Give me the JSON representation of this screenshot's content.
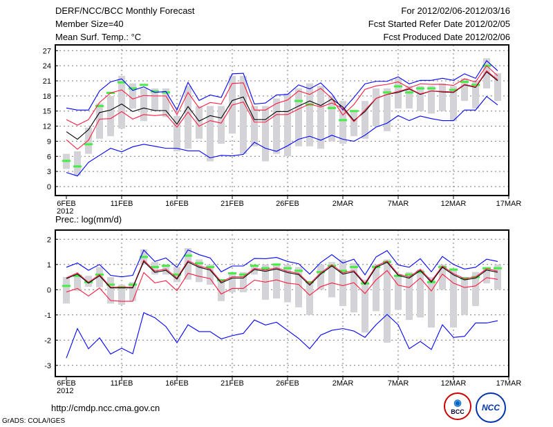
{
  "header": {
    "title": "DERF/NCC/BCC Monthly Forecast",
    "member_size": "Member Size=40",
    "variable": "Mean Surf. Temp.: °C",
    "period": "For 2012/02/06-2012/03/16",
    "started": "Fcst Started Refer Date 2012/02/05",
    "produced": "Fcst Produced Date 2012/02/06"
  },
  "footer": {
    "url": "http://cmdp.ncc.cma.gov.cn",
    "credit": "GrADS: COLA/IGES",
    "logo_bcc": "BCC",
    "logo_ncc": "NCC"
  },
  "colors": {
    "max_min": "#0000ff",
    "mean": "#000000",
    "spread": "#ff1a40",
    "range_bar": "#d3d3d8",
    "observed": "#44ee44"
  },
  "chart_data": [
    {
      "type": "line",
      "title": "Mean Surf. Temp.: °C",
      "xlabel": "",
      "ylabel": "",
      "x_ticks": [
        "6FEB",
        "11FEB",
        "16FEB",
        "21FEB",
        "26FEB",
        "2MAR",
        "7MAR",
        "12MAR",
        "17MAR"
      ],
      "x_year": "2012",
      "y_ticks": [
        0,
        3,
        6,
        9,
        12,
        15,
        18,
        21,
        24,
        27
      ],
      "ylim": [
        -1,
        28
      ],
      "grid": true,
      "days": 40,
      "series": [
        {
          "name": "max",
          "color": "#0000ff",
          "values": [
            15.6,
            15.2,
            15.2,
            19.0,
            20.8,
            21.4,
            19.1,
            19.8,
            18.7,
            18.9,
            15.2,
            20.7,
            17.1,
            18.2,
            17.7,
            22.4,
            22.5,
            16.4,
            16.6,
            18.2,
            18.3,
            20.2,
            19.4,
            20.6,
            18.4,
            15.2,
            17.7,
            20.4,
            20.9,
            20.9,
            21.8,
            20.4,
            21.1,
            21.1,
            21.5,
            21.1,
            22.4,
            21.5,
            25.0,
            23.0
          ]
        },
        {
          "name": "upper",
          "color": "#ff1a40",
          "values": [
            13.3,
            12.2,
            13.3,
            16.7,
            18.6,
            19.2,
            17.4,
            18.1,
            18.0,
            18.0,
            14.3,
            18.7,
            15.6,
            16.7,
            16.4,
            20.5,
            20.6,
            15.2,
            15.2,
            16.5,
            17.2,
            19.0,
            18.3,
            19.5,
            17.5,
            14.2,
            16.3,
            19.3,
            20.0,
            20.3,
            20.8,
            19.6,
            20.4,
            20.3,
            20.3,
            20.1,
            21.4,
            20.8,
            24.0,
            22.0
          ]
        },
        {
          "name": "mean",
          "color": "#000000",
          "values": [
            10.9,
            9.4,
            11.3,
            14.7,
            15.2,
            16.4,
            14.9,
            15.6,
            15.1,
            15.1,
            12.4,
            15.9,
            13.0,
            14.1,
            13.6,
            17.1,
            17.8,
            13.3,
            13.3,
            14.9,
            14.9,
            16.0,
            17.0,
            16.1,
            17.4,
            15.8,
            13.1,
            14.9,
            17.5,
            18.3,
            18.7,
            19.4,
            18.3,
            19.0,
            18.8,
            18.7,
            20.2,
            19.7,
            22.8,
            21.0
          ]
        },
        {
          "name": "lower",
          "color": "#ff1a40",
          "values": [
            9.3,
            7.4,
            9.2,
            13.4,
            13.5,
            14.9,
            13.4,
            14.3,
            14.1,
            14.3,
            11.8,
            14.8,
            12.0,
            13.1,
            12.6,
            16.2,
            16.8,
            12.8,
            12.8,
            14.3,
            14.3,
            15.4,
            16.4,
            15.8,
            16.6,
            15.5,
            12.9,
            15.2,
            17.5,
            18.3,
            18.9,
            19.5,
            18.4,
            19.0,
            18.9,
            18.8,
            20.3,
            19.8,
            23.0,
            21.2
          ]
        },
        {
          "name": "min",
          "color": "#0000ff",
          "values": [
            2.8,
            2.1,
            4.8,
            6.2,
            7.6,
            6.9,
            7.9,
            8.4,
            8.0,
            7.6,
            7.6,
            7.1,
            7.1,
            5.7,
            6.2,
            6.1,
            6.4,
            8.8,
            7.6,
            7.0,
            8.1,
            9.4,
            10.0,
            9.2,
            10.2,
            9.4,
            9.0,
            10.2,
            11.8,
            12.6,
            14.1,
            13.1,
            14.0,
            13.5,
            13.1,
            13.1,
            15.2,
            15.2,
            17.9,
            16.2
          ]
        }
      ],
      "range_bars": [
        [
          3.5,
          6.5
        ],
        [
          2.2,
          7
        ],
        [
          6.5,
          11.7
        ],
        [
          9.5,
          16.5
        ],
        [
          10,
          18
        ],
        [
          11.5,
          22
        ],
        [
          15.5,
          20.5
        ],
        [
          13,
          19.5
        ],
        [
          15,
          19.5
        ],
        [
          13.8,
          19.5
        ],
        [
          7,
          14
        ],
        [
          7.5,
          20
        ],
        [
          9.5,
          16
        ],
        [
          5,
          16
        ],
        [
          8.5,
          16
        ],
        [
          10.5,
          22
        ],
        [
          6.5,
          22
        ],
        [
          8,
          16
        ],
        [
          5,
          16
        ],
        [
          6.5,
          17.5
        ],
        [
          6,
          18.5
        ],
        [
          8,
          19.5
        ],
        [
          8,
          20.5
        ],
        [
          7.5,
          20
        ],
        [
          9,
          18
        ],
        [
          8.5,
          17
        ],
        [
          10,
          15
        ],
        [
          9.5,
          17
        ],
        [
          12,
          19.5
        ],
        [
          11,
          19.5
        ],
        [
          15.5,
          21.5
        ],
        [
          15.5,
          20
        ],
        [
          15,
          20
        ],
        [
          14.5,
          20
        ],
        [
          15,
          20.5
        ],
        [
          13,
          20
        ],
        [
          17,
          21.5
        ],
        [
          15.5,
          21
        ],
        [
          19.5,
          25.5
        ],
        [
          17,
          22.5
        ]
      ],
      "observed": [
        5.1,
        4.0,
        8.4,
        16.0,
        18.6,
        20.7,
        19.5,
        20.2,
        18.9,
        18.7,
        null,
        null,
        null,
        null,
        null,
        null,
        null,
        null,
        null,
        null,
        null,
        17.0,
        16.3,
        null,
        15.6,
        13.2,
        15.0,
        null,
        null,
        18.7,
        19.9,
        18.7,
        19.5,
        19.5,
        null,
        19.2,
        20.8,
        20.2,
        24.0,
        null
      ]
    },
    {
      "type": "line",
      "title": "Prec.: log(mm/d)",
      "xlabel": "",
      "ylabel": "",
      "x_ticks": [
        "6FEB",
        "11FEB",
        "16FEB",
        "21FEB",
        "26FEB",
        "2MAR",
        "7MAR",
        "12MAR",
        "17MAR"
      ],
      "x_year": "2012",
      "y_ticks": [
        -3,
        -2,
        -1,
        0,
        1,
        2
      ],
      "ylim": [
        -3.35,
        2.35
      ],
      "grid": true,
      "days": 40,
      "series": [
        {
          "name": "max",
          "color": "#0000ff",
          "values": [
            0.89,
            1.06,
            0.77,
            1.0,
            0.57,
            0.51,
            0.57,
            1.57,
            1.12,
            1.26,
            0.89,
            1.58,
            1.39,
            1.26,
            0.71,
            0.94,
            0.94,
            1.24,
            1.23,
            1.28,
            1.12,
            1.03,
            0.62,
            1.08,
            1.39,
            1.06,
            1.21,
            0.59,
            1.3,
            1.55,
            0.98,
            0.89,
            1.23,
            0.71,
            1.32,
            1.0,
            0.82,
            0.89,
            1.21,
            1.12
          ]
        },
        {
          "name": "upper",
          "color": "#ff1a40",
          "values": [
            0.47,
            0.67,
            0.29,
            0.6,
            0.1,
            0.1,
            0.1,
            1.17,
            0.74,
            0.82,
            0.47,
            1.15,
            0.94,
            0.83,
            0.32,
            0.51,
            0.51,
            0.85,
            0.78,
            0.87,
            0.73,
            0.65,
            0.23,
            0.67,
            0.99,
            0.67,
            0.76,
            0.26,
            0.94,
            1.14,
            0.62,
            0.51,
            0.81,
            0.35,
            0.94,
            0.64,
            0.44,
            0.51,
            0.83,
            0.74
          ]
        },
        {
          "name": "mean",
          "color": "#000000",
          "values": [
            0.44,
            0.62,
            0.26,
            0.55,
            0.07,
            0.07,
            0.07,
            1.12,
            0.69,
            0.77,
            0.42,
            1.1,
            0.89,
            0.78,
            0.27,
            0.46,
            0.46,
            0.8,
            0.73,
            0.82,
            0.68,
            0.6,
            0.18,
            0.62,
            0.94,
            0.62,
            0.71,
            0.21,
            0.89,
            1.09,
            0.57,
            0.46,
            0.76,
            0.3,
            0.89,
            0.59,
            0.39,
            0.46,
            0.78,
            0.69
          ]
        },
        {
          "name": "lower",
          "color": "#ff1a40",
          "values": [
            -0.09,
            0.05,
            -0.25,
            0.07,
            -0.43,
            -0.46,
            -0.46,
            0.68,
            0.27,
            0.36,
            -0.04,
            0.65,
            0.53,
            0.44,
            -0.17,
            0.05,
            0.05,
            0.38,
            0.3,
            0.39,
            0.26,
            0.21,
            -0.22,
            0.12,
            0.27,
            0.16,
            0.28,
            -0.15,
            0.39,
            0.76,
            0.18,
            0.09,
            0.46,
            -0.05,
            0.62,
            0.26,
            0.09,
            0.15,
            0.48,
            0.41
          ]
        },
        {
          "name": "min",
          "color": "#0000ff",
          "values": [
            -2.71,
            -1.54,
            -2.34,
            -1.91,
            -2.55,
            -2.32,
            -2.54,
            -0.91,
            -1.11,
            -1.46,
            -2.1,
            -1.39,
            -1.66,
            -1.66,
            -1.95,
            -1.82,
            -1.73,
            -1.2,
            -1.4,
            -1.29,
            -1.61,
            -1.93,
            -2.34,
            -1.8,
            -1.61,
            -1.54,
            -1.64,
            -1.89,
            -1.39,
            -0.98,
            -1.39,
            -2.34,
            -2.05,
            -2.37,
            -1.39,
            -1.89,
            -1.85,
            -1.32,
            -1.32,
            -1.23
          ]
        }
      ],
      "range_bars": [
        [
          -0.55,
          0.5
        ],
        [
          -0.05,
          0.6
        ],
        [
          0.12,
          0.55
        ],
        [
          0.1,
          0.9
        ],
        [
          -0.55,
          0.5
        ],
        [
          -0.6,
          0.2
        ],
        [
          -0.45,
          0.3
        ],
        [
          1.0,
          1.6
        ],
        [
          0.6,
          1.1
        ],
        [
          0.6,
          1.0
        ],
        [
          0.3,
          0.9
        ],
        [
          0.4,
          1.65
        ],
        [
          0.3,
          1.2
        ],
        [
          0.2,
          1.0
        ],
        [
          -0.45,
          0.4
        ],
        [
          -0.1,
          0.7
        ],
        [
          -0.1,
          0.7
        ],
        [
          0.6,
          1.0
        ],
        [
          -0.4,
          1.0
        ],
        [
          -0.35,
          1.0
        ],
        [
          -0.5,
          1.0
        ],
        [
          -0.7,
          0.9
        ],
        [
          -1.0,
          0.3
        ],
        [
          0.0,
          1.0
        ],
        [
          -0.3,
          1.1
        ],
        [
          -0.65,
          1.2
        ],
        [
          -0.9,
          1.05
        ],
        [
          -1.7,
          0.4
        ],
        [
          -0.85,
          1.0
        ],
        [
          -2.1,
          1.2
        ],
        [
          -0.8,
          0.6
        ],
        [
          -1.2,
          0.7
        ],
        [
          -1.1,
          0.8
        ],
        [
          -1.5,
          0.5
        ],
        [
          0.0,
          1.0
        ],
        [
          -1.5,
          0.8
        ],
        [
          -1.0,
          0.5
        ],
        [
          -0.65,
          0.7
        ],
        [
          0.25,
          0.9
        ],
        [
          0.0,
          1.0
        ]
      ],
      "observed": [
        0.15,
        0.55,
        0.3,
        0.6,
        0.2,
        0.1,
        0.2,
        1.3,
        0.9,
        0.95,
        0.6,
        1.35,
        1.05,
        0.9,
        0.38,
        0.65,
        0.6,
        0.95,
        0.85,
        1.0,
        0.85,
        0.75,
        0.3,
        0.7,
        0.95,
        0.75,
        0.9,
        0.25,
        0.9,
        1.1,
        0.55,
        0.6,
        0.7,
        0.3,
        0.9,
        0.8,
        0.45,
        0.5,
        0.85,
        0.85
      ]
    }
  ]
}
